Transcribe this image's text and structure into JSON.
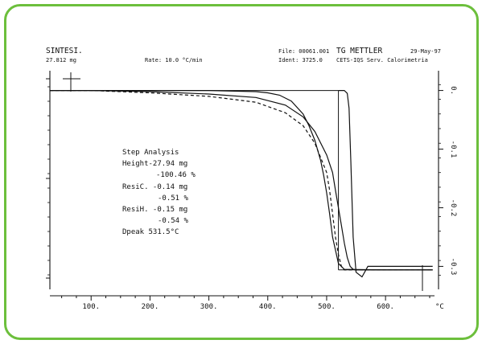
{
  "header": {
    "sample_name": "SINTESI.",
    "sample_mass": "27.812 mg",
    "rate": "Rate: 10.0 °C/min",
    "file": "File: 00061.001",
    "ident": "Ident: 3725.0",
    "instrument": "TG METTLER",
    "date": "29-May-97",
    "lab": "CETS-IQS Serv. Calorimetria"
  },
  "step_analysis": {
    "title": "Step Analysis",
    "height_value": "Height-27.94 mg",
    "height_percent": "-100.46 %",
    "resic_value": "ResiC. -0.14 mg",
    "resic_percent": "-0.51 %",
    "resih_value": "ResiH. -0.15 mg",
    "resih_percent": "-0.54 %",
    "dpeak": "Dpeak 531.5°C"
  },
  "chart_data": {
    "type": "line",
    "title": "",
    "xlabel": "°C",
    "x_ticks": [
      "100.",
      "200.",
      "300.",
      "400.",
      "500.",
      "600."
    ],
    "x_tick_values": [
      100,
      200,
      300,
      400,
      500,
      600
    ],
    "xlim": [
      30,
      690
    ],
    "right_axis_ticks": [
      "0.",
      "-0.1",
      "-0.2",
      "-0.3"
    ],
    "right_axis_values": [
      0,
      -0.1,
      -0.2,
      -0.3
    ],
    "right_ylim": [
      0.02,
      -0.32
    ],
    "left_axis_ticks": [
      "",
      "",
      ""
    ],
    "left_axis_values": [
      0,
      -0.5,
      -1
    ],
    "series": [
      {
        "style": "solid",
        "x": [
          30,
          100,
          200,
          300,
          380,
          430,
          460,
          480,
          500,
          510,
          515,
          520,
          525,
          530,
          535,
          540,
          545,
          550,
          600,
          680
        ],
        "y": [
          0,
          0,
          -0.002,
          -0.006,
          -0.012,
          -0.025,
          -0.045,
          -0.07,
          -0.11,
          -0.14,
          -0.17,
          -0.2,
          -0.23,
          -0.26,
          -0.285,
          -0.3,
          -0.305,
          -0.306,
          -0.306,
          -0.306
        ]
      },
      {
        "style": "dashed",
        "x": [
          30,
          100,
          200,
          300,
          380,
          430,
          460,
          480,
          500,
          505,
          510,
          515,
          520,
          525,
          530,
          540,
          600,
          680
        ],
        "y": [
          0,
          0,
          -0.004,
          -0.01,
          -0.02,
          -0.038,
          -0.06,
          -0.09,
          -0.14,
          -0.17,
          -0.21,
          -0.25,
          -0.28,
          -0.3,
          -0.306,
          -0.306,
          -0.306,
          -0.306
        ]
      },
      {
        "style": "solid",
        "x": [
          30,
          100,
          200,
          300,
          380,
          400,
          420,
          440,
          460,
          470,
          480,
          490,
          495,
          500,
          505,
          510,
          520,
          530,
          600,
          680
        ],
        "y": [
          0,
          0,
          0,
          0,
          -0.002,
          -0.004,
          -0.008,
          -0.018,
          -0.04,
          -0.06,
          -0.085,
          -0.12,
          -0.145,
          -0.175,
          -0.21,
          -0.25,
          -0.295,
          -0.305,
          -0.306,
          -0.306
        ]
      },
      {
        "style": "solid",
        "x": [
          520,
          525,
          530,
          535,
          538,
          541,
          545,
          550,
          560,
          570,
          600,
          680
        ],
        "y": [
          0,
          0,
          0,
          -0.005,
          -0.03,
          -0.12,
          -0.25,
          -0.31,
          -0.318,
          -0.3,
          -0.3,
          -0.3
        ],
        "note_axis": "right"
      }
    ]
  }
}
